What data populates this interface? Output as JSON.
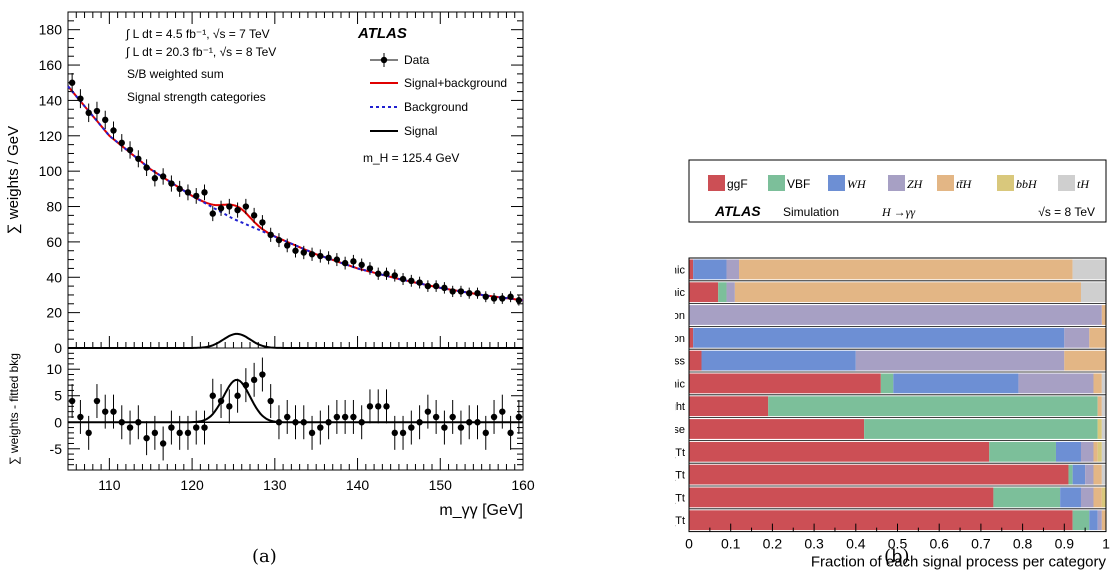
{
  "caption_a": "(a)",
  "caption_b": "(b)",
  "chart_data": [
    {
      "type": "scatter",
      "panel": "a-top",
      "ylabel": "∑ weights / GeV",
      "xlim": [
        105,
        160
      ],
      "ylim": [
        0,
        190
      ],
      "y_ticks": [
        0,
        20,
        40,
        60,
        80,
        100,
        120,
        140,
        160,
        180
      ],
      "lumi_7": "∫ L dt = 4.5 fb⁻¹, √s = 7 TeV",
      "lumi_8": "∫ L dt = 20.3 fb⁻¹, √s = 8 TeV",
      "note1": "S/B weighted sum",
      "note2": "Signal strength categories",
      "atlas_label": "ATLAS",
      "mass_label": "m_H = 125.4 GeV",
      "legend": [
        "Data",
        "Signal+background",
        "Background",
        "Signal"
      ],
      "data_x": [
        105.5,
        106.5,
        107.5,
        108.5,
        109.5,
        110.5,
        111.5,
        112.5,
        113.5,
        114.5,
        115.5,
        116.5,
        117.5,
        118.5,
        119.5,
        120.5,
        121.5,
        122.5,
        123.5,
        124.5,
        125.5,
        126.5,
        127.5,
        128.5,
        129.5,
        130.5,
        131.5,
        132.5,
        133.5,
        134.5,
        135.5,
        136.5,
        137.5,
        138.5,
        139.5,
        140.5,
        141.5,
        142.5,
        143.5,
        144.5,
        145.5,
        146.5,
        147.5,
        148.5,
        149.5,
        150.5,
        151.5,
        152.5,
        153.5,
        154.5,
        155.5,
        156.5,
        157.5,
        158.5,
        159.5
      ],
      "data_y": [
        150,
        141,
        133,
        134,
        129,
        123,
        116,
        112,
        107,
        102,
        96,
        97,
        93,
        90,
        88,
        86,
        88,
        76,
        79,
        80,
        78,
        80,
        75,
        71,
        64,
        61,
        58,
        55,
        54,
        53,
        52,
        51,
        50,
        48,
        49,
        47,
        45,
        42,
        42,
        41,
        39,
        38,
        37,
        35,
        35,
        34,
        32,
        32,
        31,
        31,
        29,
        28,
        28,
        29,
        27
      ],
      "background": [
        [
          105,
          148
        ],
        [
          110,
          120
        ],
        [
          115,
          101
        ],
        [
          120,
          86
        ],
        [
          125,
          73
        ],
        [
          130,
          63
        ],
        [
          135,
          53
        ],
        [
          140,
          45
        ],
        [
          145,
          39
        ],
        [
          150,
          34
        ],
        [
          155,
          30
        ],
        [
          160,
          27
        ]
      ],
      "signal_peak": 8,
      "signal_mass": 125.4,
      "signal_sigma": 1.6
    },
    {
      "type": "scatter",
      "panel": "a-bottom",
      "ylabel": "∑ weights - fitted bkg",
      "xlabel": "m_γγ [GeV]",
      "xlim": [
        105,
        160
      ],
      "ylim": [
        -9,
        14
      ],
      "x_ticks": [
        110,
        120,
        130,
        140,
        150,
        160
      ],
      "y_ticks": [
        -5,
        0,
        5,
        10
      ],
      "resid_y": [
        4,
        1,
        -2,
        4,
        2,
        2,
        0,
        -1,
        0,
        -3,
        -2,
        -4,
        -1,
        -2,
        -2,
        -1,
        -1,
        5,
        4,
        3,
        5,
        7,
        8,
        9,
        4,
        0,
        1,
        0,
        0,
        -2,
        -1,
        0,
        1,
        1,
        1,
        0,
        3,
        3,
        3,
        -2,
        -2,
        -1,
        0,
        2,
        1,
        -1,
        1,
        -1,
        0,
        0,
        -2,
        1,
        2,
        -2,
        1
      ]
    },
    {
      "type": "bar",
      "panel": "b",
      "stacked": true,
      "orientation": "horizontal",
      "xlabel": "Fraction of each signal process per category",
      "xlim": [
        0,
        1
      ],
      "x_ticks": [
        "0",
        "0.1",
        "0.2",
        "0.3",
        "0.4",
        "0.5",
        "0.6",
        "0.7",
        "0.8",
        "0.9",
        "1"
      ],
      "atlas_label": "ATLAS",
      "sim_label": "Simulation",
      "channel_label": "H →γγ",
      "energy_label": "√s = 8 TeV",
      "categories": [
        "tt̄H leptonic",
        "tt̄H hadronic",
        "VH dilepton",
        "VH one lepton",
        "VH E_T^miss",
        "VH hadronic",
        "VBF tight",
        "VBF loose",
        "Forward - high p_Tt",
        "Forward - low p_Tt",
        "Central - high p_Tt",
        "Central - low p_Tt"
      ],
      "series": [
        {
          "name": "ggF",
          "color": "#cc4f55",
          "values": [
            0.01,
            0.07,
            0.0,
            0.01,
            0.03,
            0.46,
            0.19,
            0.42,
            0.72,
            0.91,
            0.73,
            0.92
          ]
        },
        {
          "name": "VBF",
          "color": "#7cbf9a",
          "values": [
            0.0,
            0.02,
            0.0,
            0.0,
            0.0,
            0.03,
            0.79,
            0.56,
            0.16,
            0.01,
            0.16,
            0.04
          ]
        },
        {
          "name": "WH",
          "color": "#6d8fd4",
          "values": [
            0.08,
            0.0,
            0.0,
            0.89,
            0.37,
            0.3,
            0.0,
            0.0,
            0.06,
            0.03,
            0.05,
            0.02
          ]
        },
        {
          "name": "ZH",
          "color": "#a7a0c4",
          "values": [
            0.03,
            0.02,
            0.99,
            0.06,
            0.5,
            0.18,
            0.0,
            0.0,
            0.03,
            0.02,
            0.03,
            0.01
          ]
        },
        {
          "name": "tt̄H",
          "color": "#e3b685",
          "values": [
            0.8,
            0.83,
            0.01,
            0.04,
            0.1,
            0.02,
            0.01,
            0.0,
            0.01,
            0.02,
            0.02,
            0.01
          ]
        },
        {
          "name": "bbH",
          "color": "#d9c87c",
          "values": [
            0.0,
            0.0,
            0.0,
            0.0,
            0.0,
            0.0,
            0.0,
            0.01,
            0.01,
            0.0,
            0.01,
            0.0
          ]
        },
        {
          "name": "tH",
          "color": "#cfcfcf",
          "values": [
            0.08,
            0.06,
            0.0,
            0.0,
            0.0,
            0.01,
            0.01,
            0.01,
            0.01,
            0.01,
            0.0,
            0.0
          ]
        }
      ]
    }
  ]
}
